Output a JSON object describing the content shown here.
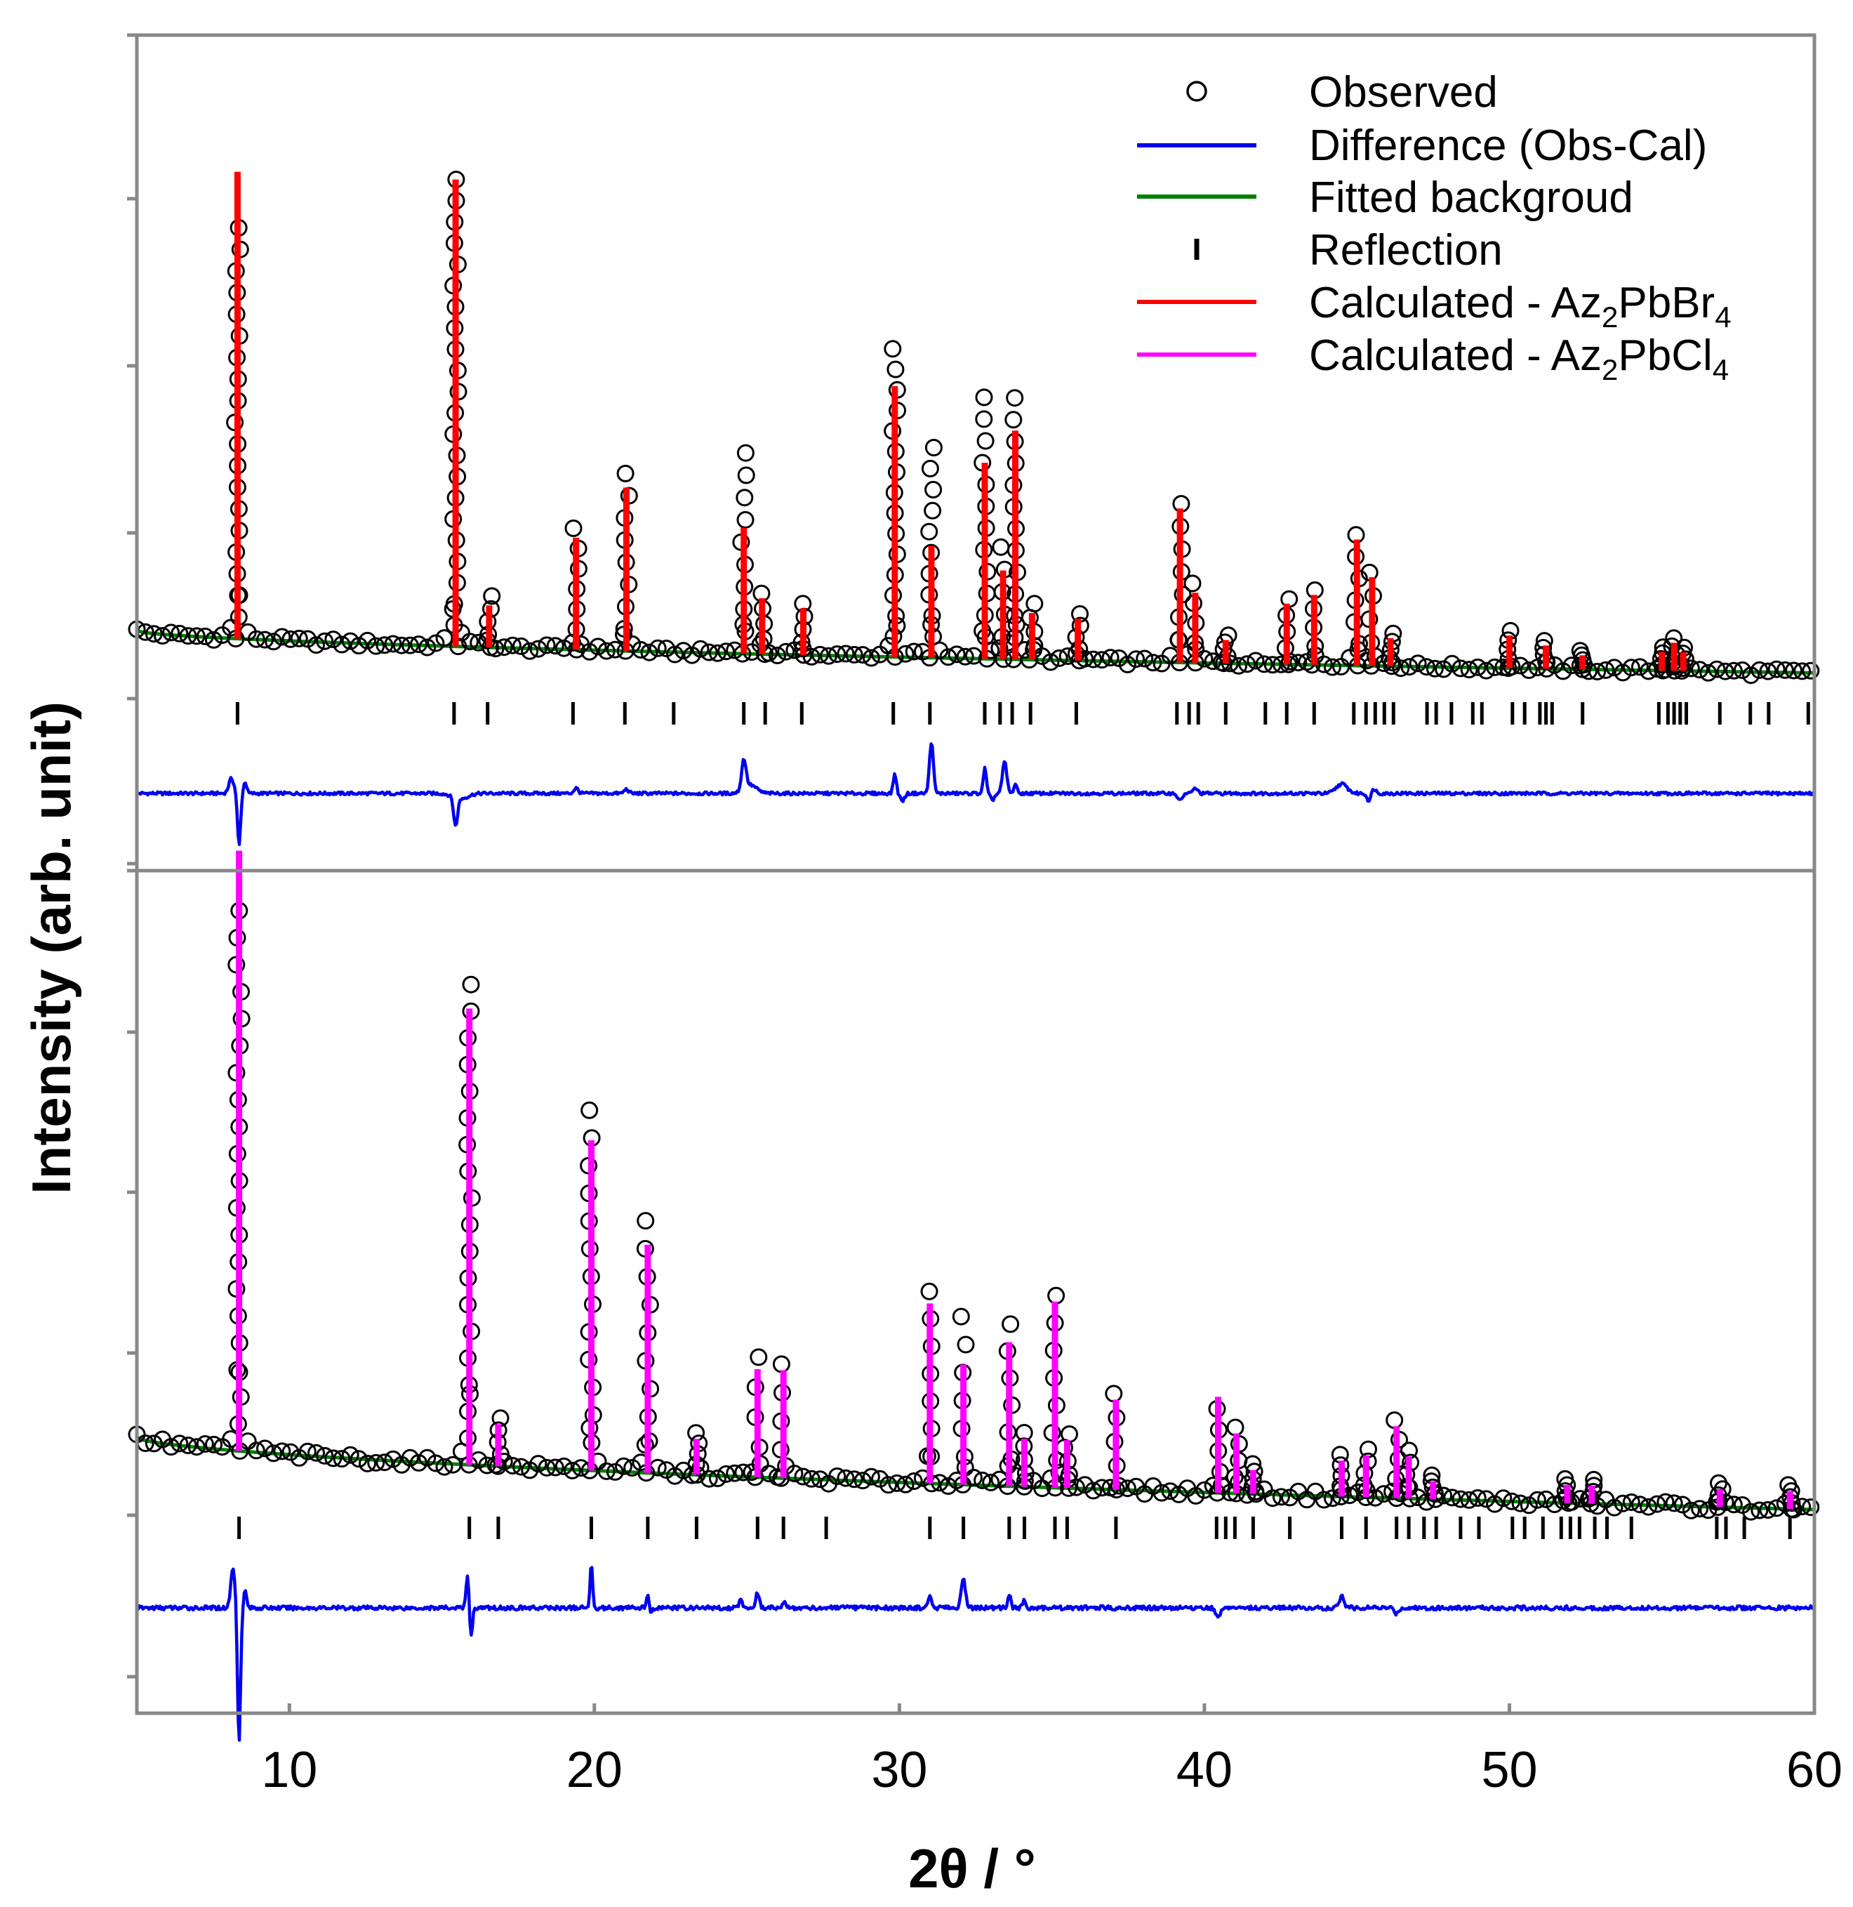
{
  "chart_data": {
    "type": "line",
    "figure": "Rietveld refinement of powder X-ray diffraction patterns",
    "xlabel": "2θ / °",
    "ylabel": "Intensity (arb. unit)",
    "xlim": [
      5,
      60
    ],
    "xticks": [
      10,
      20,
      30,
      40,
      50,
      60
    ],
    "grid": false,
    "legend_position": "top-right",
    "legend": [
      {
        "key": "observed",
        "marker": "circle",
        "color": "#000000",
        "label": "Observed"
      },
      {
        "key": "difference",
        "marker": "line",
        "color": "#0000ee",
        "label": "Difference (Obs-Cal)"
      },
      {
        "key": "background",
        "marker": "line",
        "color": "#008000",
        "label": "Fitted backgroud"
      },
      {
        "key": "reflection",
        "marker": "tick",
        "color": "#000000",
        "label": "Reflection"
      },
      {
        "key": "calc_br",
        "marker": "line",
        "color": "#ff0000",
        "label_main": "Calculated - Az",
        "label_parts": [
          "2",
          "PbBr",
          "4"
        ]
      },
      {
        "key": "calc_cl",
        "marker": "line",
        "color": "#ff00ff",
        "label_main": "Calculated - Az",
        "label_parts": [
          "2",
          "PbCl",
          "4"
        ]
      }
    ],
    "panels": [
      {
        "name": "Az2PbBr4",
        "calc_color": "#ff0000",
        "background": {
          "start": 0.13,
          "end": 0.04
        },
        "peaks": [
          {
            "x": 8.3,
            "obs": 0.88,
            "calc": 1.0
          },
          {
            "x": 15.45,
            "obs": 1.0,
            "calc": 1.0
          },
          {
            "x": 16.55,
            "obs": 0.11,
            "calc": 0.09
          },
          {
            "x": 19.4,
            "obs": 0.26,
            "calc": 0.24
          },
          {
            "x": 21.05,
            "obs": 0.38,
            "calc": 0.35
          },
          {
            "x": 24.9,
            "obs": 0.43,
            "calc": 0.27
          },
          {
            "x": 25.5,
            "obs": 0.13,
            "calc": 0.12
          },
          {
            "x": 26.85,
            "obs": 0.11,
            "calc": 0.1
          },
          {
            "x": 29.85,
            "obs": 0.66,
            "calc": 0.58
          },
          {
            "x": 31.05,
            "obs": 0.45,
            "calc": 0.24
          },
          {
            "x": 32.8,
            "obs": 0.56,
            "calc": 0.42
          },
          {
            "x": 33.4,
            "obs": 0.24,
            "calc": 0.19
          },
          {
            "x": 33.8,
            "obs": 0.56,
            "calc": 0.49
          },
          {
            "x": 34.35,
            "obs": 0.12,
            "calc": 0.1
          },
          {
            "x": 35.85,
            "obs": 0.1,
            "calc": 0.09
          },
          {
            "x": 39.2,
            "obs": 0.34,
            "calc": 0.33
          },
          {
            "x": 39.7,
            "obs": 0.17,
            "calc": 0.15
          },
          {
            "x": 40.7,
            "obs": 0.06,
            "calc": 0.05
          },
          {
            "x": 42.7,
            "obs": 0.14,
            "calc": 0.13
          },
          {
            "x": 43.6,
            "obs": 0.16,
            "calc": 0.15
          },
          {
            "x": 45.0,
            "obs": 0.28,
            "calc": 0.27
          },
          {
            "x": 45.5,
            "obs": 0.2,
            "calc": 0.19
          },
          {
            "x": 46.1,
            "obs": 0.07,
            "calc": 0.06
          },
          {
            "x": 50.0,
            "obs": 0.08,
            "calc": 0.07
          },
          {
            "x": 51.2,
            "obs": 0.06,
            "calc": 0.05
          },
          {
            "x": 52.4,
            "obs": 0.04,
            "calc": 0.03
          },
          {
            "x": 55.0,
            "obs": 0.05,
            "calc": 0.04
          },
          {
            "x": 55.4,
            "obs": 0.07,
            "calc": 0.06
          },
          {
            "x": 55.7,
            "obs": 0.05,
            "calc": 0.04
          }
        ],
        "reflections": [
          8.3,
          15.4,
          16.5,
          19.3,
          21.0,
          22.6,
          24.9,
          25.6,
          26.8,
          29.8,
          31.0,
          32.8,
          33.3,
          33.7,
          34.3,
          35.8,
          39.1,
          39.5,
          39.8,
          40.7,
          42.0,
          42.7,
          43.6,
          44.9,
          45.3,
          45.6,
          45.9,
          46.2,
          47.3,
          47.6,
          48.1,
          48.8,
          49.1,
          50.1,
          50.5,
          51.0,
          51.2,
          51.4,
          52.4,
          54.9,
          55.2,
          55.4,
          55.6,
          55.8,
          56.9,
          57.9,
          58.5,
          59.8
        ],
        "difference_peaks": [
          {
            "x": 8.1,
            "a": 0.14,
            "w": 0.12
          },
          {
            "x": 8.35,
            "a": -0.5,
            "w": 0.07
          },
          {
            "x": 8.55,
            "a": 0.11,
            "w": 0.07
          },
          {
            "x": 15.45,
            "a": -0.27,
            "w": 0.09
          },
          {
            "x": 15.6,
            "a": -0.05,
            "w": 0.35
          },
          {
            "x": 19.4,
            "a": 0.05,
            "w": 0.1
          },
          {
            "x": 21.05,
            "a": 0.04,
            "w": 0.1
          },
          {
            "x": 24.9,
            "a": 0.28,
            "w": 0.1
          },
          {
            "x": 25.1,
            "a": 0.08,
            "w": 0.3
          },
          {
            "x": 29.85,
            "a": 0.19,
            "w": 0.07
          },
          {
            "x": 30.1,
            "a": -0.07,
            "w": 0.1
          },
          {
            "x": 31.05,
            "a": 0.49,
            "w": 0.09
          },
          {
            "x": 32.8,
            "a": 0.24,
            "w": 0.07
          },
          {
            "x": 33.05,
            "a": -0.06,
            "w": 0.1
          },
          {
            "x": 33.45,
            "a": 0.3,
            "w": 0.1
          },
          {
            "x": 33.8,
            "a": 0.09,
            "w": 0.07
          },
          {
            "x": 39.2,
            "a": -0.07,
            "w": 0.1
          },
          {
            "x": 39.7,
            "a": 0.05,
            "w": 0.1
          },
          {
            "x": 44.5,
            "a": 0.09,
            "w": 0.25
          },
          {
            "x": 45.4,
            "a": -0.07,
            "w": 0.1
          },
          {
            "x": 45.55,
            "a": 0.05,
            "w": 0.1
          }
        ]
      },
      {
        "name": "Az2PbCl4",
        "calc_color": "#ff00ff",
        "background": {
          "start": 0.12,
          "end": 0.0
        },
        "peaks": [
          {
            "x": 8.35,
            "obs": 0.9,
            "calc": 1.0
          },
          {
            "x": 15.9,
            "obs": 0.8,
            "calc": 0.76
          },
          {
            "x": 16.85,
            "obs": 0.08,
            "calc": 0.07
          },
          {
            "x": 19.9,
            "obs": 0.6,
            "calc": 0.55
          },
          {
            "x": 21.75,
            "obs": 0.42,
            "calc": 0.38
          },
          {
            "x": 23.35,
            "obs": 0.07,
            "calc": 0.06
          },
          {
            "x": 25.35,
            "obs": 0.2,
            "calc": 0.18
          },
          {
            "x": 26.2,
            "obs": 0.19,
            "calc": 0.18
          },
          {
            "x": 31.0,
            "obs": 0.32,
            "calc": 0.3
          },
          {
            "x": 32.1,
            "obs": 0.28,
            "calc": 0.2
          },
          {
            "x": 33.6,
            "obs": 0.27,
            "calc": 0.24
          },
          {
            "x": 34.1,
            "obs": 0.09,
            "calc": 0.08
          },
          {
            "x": 35.1,
            "obs": 0.32,
            "calc": 0.31
          },
          {
            "x": 35.5,
            "obs": 0.09,
            "calc": 0.08
          },
          {
            "x": 37.1,
            "obs": 0.16,
            "calc": 0.15
          },
          {
            "x": 40.45,
            "obs": 0.14,
            "calc": 0.16
          },
          {
            "x": 41.05,
            "obs": 0.11,
            "calc": 0.1
          },
          {
            "x": 41.6,
            "obs": 0.05,
            "calc": 0.04
          },
          {
            "x": 44.5,
            "obs": 0.07,
            "calc": 0.06
          },
          {
            "x": 45.3,
            "obs": 0.08,
            "calc": 0.07
          },
          {
            "x": 46.3,
            "obs": 0.13,
            "calc": 0.12
          },
          {
            "x": 46.7,
            "obs": 0.08,
            "calc": 0.07
          },
          {
            "x": 47.5,
            "obs": 0.04,
            "calc": 0.03
          },
          {
            "x": 51.9,
            "obs": 0.04,
            "calc": 0.03
          },
          {
            "x": 52.7,
            "obs": 0.04,
            "calc": 0.03
          },
          {
            "x": 56.9,
            "obs": 0.04,
            "calc": 0.03
          },
          {
            "x": 59.2,
            "obs": 0.04,
            "calc": 0.03
          }
        ],
        "reflections": [
          8.35,
          15.9,
          16.85,
          19.9,
          21.75,
          23.35,
          25.35,
          26.2,
          27.6,
          31.0,
          32.1,
          33.6,
          34.1,
          35.1,
          35.5,
          37.1,
          40.4,
          40.7,
          41.0,
          41.6,
          42.8,
          44.5,
          45.3,
          46.3,
          46.7,
          47.2,
          47.6,
          48.4,
          49.0,
          50.1,
          50.5,
          51.1,
          51.7,
          52.0,
          52.3,
          52.8,
          53.2,
          54.0,
          56.8,
          57.1,
          57.7,
          59.2
        ],
        "difference_peaks": [
          {
            "x": 8.15,
            "a": 0.28,
            "w": 0.1
          },
          {
            "x": 8.35,
            "a": -0.95,
            "w": 0.07
          },
          {
            "x": 8.55,
            "a": 0.12,
            "w": 0.07
          },
          {
            "x": 15.85,
            "a": 0.25,
            "w": 0.07
          },
          {
            "x": 15.95,
            "a": -0.22,
            "w": 0.07
          },
          {
            "x": 19.9,
            "a": 0.31,
            "w": 0.06
          },
          {
            "x": 21.75,
            "a": 0.09,
            "w": 0.07
          },
          {
            "x": 21.85,
            "a": -0.05,
            "w": 0.07
          },
          {
            "x": 24.8,
            "a": 0.06,
            "w": 0.08
          },
          {
            "x": 25.35,
            "a": 0.11,
            "w": 0.08
          },
          {
            "x": 26.2,
            "a": 0.04,
            "w": 0.08
          },
          {
            "x": 31.0,
            "a": 0.1,
            "w": 0.07
          },
          {
            "x": 32.1,
            "a": 0.2,
            "w": 0.1
          },
          {
            "x": 33.6,
            "a": 0.1,
            "w": 0.07
          },
          {
            "x": 34.1,
            "a": 0.06,
            "w": 0.07
          },
          {
            "x": 40.45,
            "a": -0.07,
            "w": 0.1
          },
          {
            "x": 44.5,
            "a": 0.08,
            "w": 0.12
          },
          {
            "x": 46.3,
            "a": -0.04,
            "w": 0.1
          }
        ]
      }
    ]
  }
}
